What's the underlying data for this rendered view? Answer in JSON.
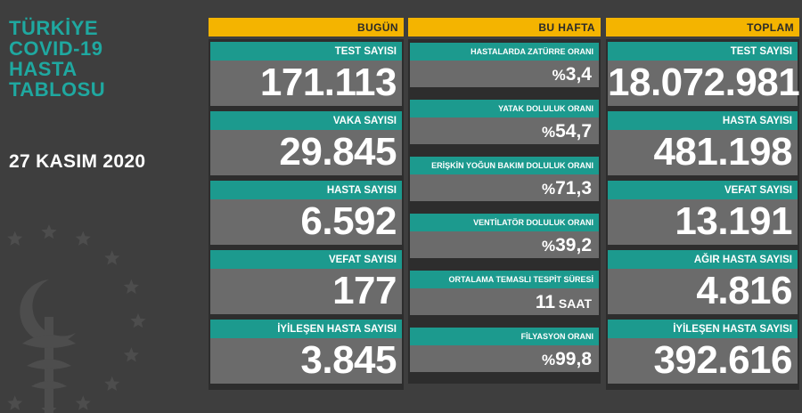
{
  "title_lines": [
    "TÜRKİYE",
    "COVID-19",
    "HASTA",
    "TABLOSU"
  ],
  "date": "27 KASIM 2020",
  "colors": {
    "background": "#3e3e3e",
    "teal": "#1c9a8e",
    "yellow": "#f4b400",
    "value_bg": "#6b6b6b"
  },
  "today": {
    "header": "BUGÜN",
    "cards": [
      {
        "label": "TEST SAYISI",
        "value": "171.113"
      },
      {
        "label": "VAKA SAYISI",
        "value": "29.845"
      },
      {
        "label": "HASTA SAYISI",
        "value": "6.592"
      },
      {
        "label": "VEFAT SAYISI",
        "value": "177"
      },
      {
        "label": "İYİLEŞEN HASTA SAYISI",
        "value": "3.845"
      }
    ]
  },
  "week": {
    "header": "BU HAFTA",
    "cards": [
      {
        "label": "HASTALARDA ZATÜRRE ORANI",
        "prefix": "%",
        "value": "3,4",
        "unit": ""
      },
      {
        "label": "YATAK DOLULUK ORANI",
        "prefix": "%",
        "value": "54,7",
        "unit": ""
      },
      {
        "label": "ERİŞKİN YOĞUN BAKIM DOLULUK ORANI",
        "prefix": "%",
        "value": "71,3",
        "unit": ""
      },
      {
        "label": "VENTİLATÖR DOLULUK ORANI",
        "prefix": "%",
        "value": "39,2",
        "unit": ""
      },
      {
        "label": "ORTALAMA TEMASLI TESPİT SÜRESİ",
        "prefix": "",
        "value": "11",
        "unit": " SAAT"
      },
      {
        "label": "FİLYASYON ORANI",
        "prefix": "%",
        "value": "99,8",
        "unit": ""
      }
    ]
  },
  "total": {
    "header": "TOPLAM",
    "cards": [
      {
        "label": "TEST SAYISI",
        "value": "18.072.981"
      },
      {
        "label": "HASTA SAYISI",
        "value": "481.198"
      },
      {
        "label": "VEFAT SAYISI",
        "value": "13.191"
      },
      {
        "label": "AĞIR HASTA SAYISI",
        "value": "4.816"
      },
      {
        "label": "İYİLEŞEN HASTA SAYISI",
        "value": "392.616"
      }
    ]
  },
  "icons": {
    "emblem": "ministry-of-health-emblem-icon"
  }
}
